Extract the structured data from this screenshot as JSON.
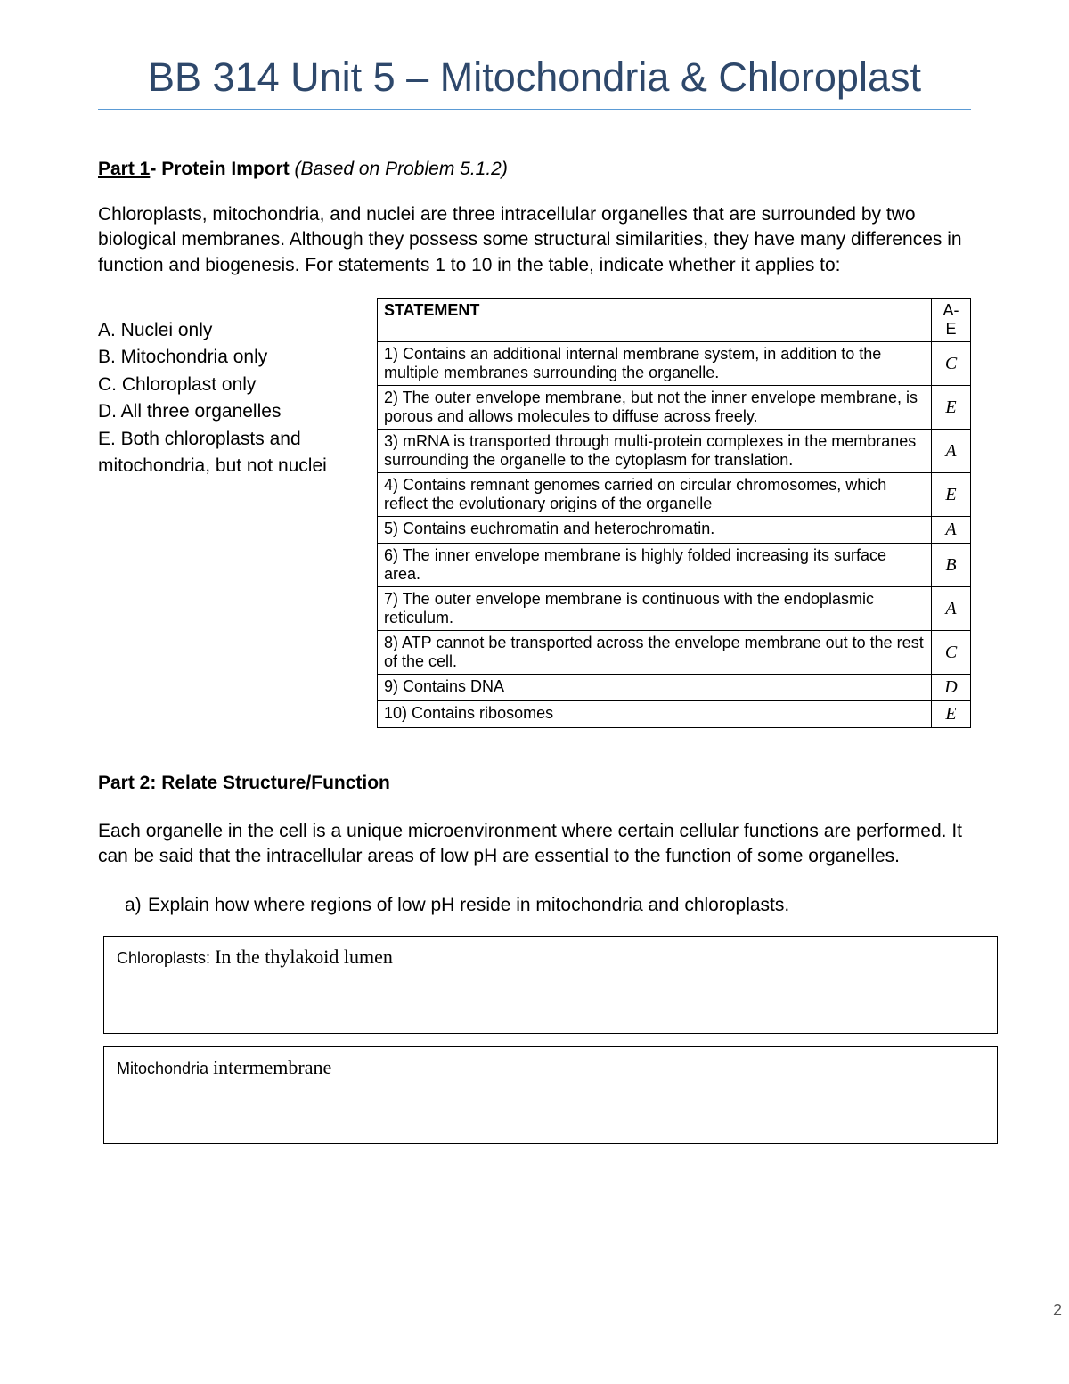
{
  "title": "BB 314 Unit 5 – Mitochondria & Chloroplast",
  "part1": {
    "label": "Part 1",
    "dash_title": "- Protein Import ",
    "based": "(Based on Problem 5.1.2)",
    "intro": "Chloroplasts, mitochondria, and nuclei are three intracellular organelles that are surrounded by two biological membranes. Although they possess some structural similarities, they have many differences in function and biogenesis. For statements 1 to 10 in the table, indicate whether it applies to:",
    "legend": [
      "A. Nuclei only",
      "B. Mitochondria only",
      "C. Chloroplast only",
      "D. All three organelles",
      "E. Both chloroplasts and mitochondria, but not nuclei"
    ],
    "table": {
      "header_left": "STATEMENT",
      "header_right": "A-E",
      "rows": [
        {
          "text": "1) Contains an additional internal membrane system, in addition to the multiple membranes surrounding the organelle.",
          "ans": "C"
        },
        {
          "text": "2) The outer envelope membrane, but not the inner envelope membrane, is porous and allows molecules to diffuse across freely.",
          "ans": "E"
        },
        {
          "text": "3) mRNA is transported through multi-protein complexes in the membranes surrounding the organelle to the cytoplasm for translation.",
          "ans": "A"
        },
        {
          "text": "4) Contains remnant genomes carried on circular chromosomes, which reflect the evolutionary origins of the organelle",
          "ans": "E"
        },
        {
          "text": "5) Contains euchromatin and heterochromatin.",
          "ans": "A"
        },
        {
          "text": "6) The inner envelope membrane is highly folded increasing its surface area.",
          "ans": "B"
        },
        {
          "text": "7) The outer envelope membrane is continuous with the endoplasmic reticulum.",
          "ans": "A"
        },
        {
          "text": "8) ATP cannot be transported across the envelope membrane out to the rest of the cell.",
          "ans": "C"
        },
        {
          "text": "9) Contains DNA",
          "ans": "D"
        },
        {
          "text": "10) Contains ribosomes",
          "ans": "E"
        }
      ]
    }
  },
  "part2": {
    "heading": "Part 2: Relate Structure/Function",
    "intro": "Each organelle in the cell is a unique microenvironment where certain cellular functions are performed. It can be said that the intracellular areas of low pH are essential to the function of some organelles.",
    "qa": {
      "num": "a)",
      "text": "Explain how where regions of low pH reside in mitochondria and chloroplasts."
    },
    "box1_label": "Chloroplasts: ",
    "box1_hand": "In the thylakoid lumen",
    "box2_label": "Mitochondria ",
    "box2_hand": "intermembrane"
  },
  "page_number": "2",
  "colors": {
    "title_color": "#2e486b",
    "rule_color": "#5b9bd5",
    "text_color": "#000000",
    "background": "#ffffff"
  }
}
